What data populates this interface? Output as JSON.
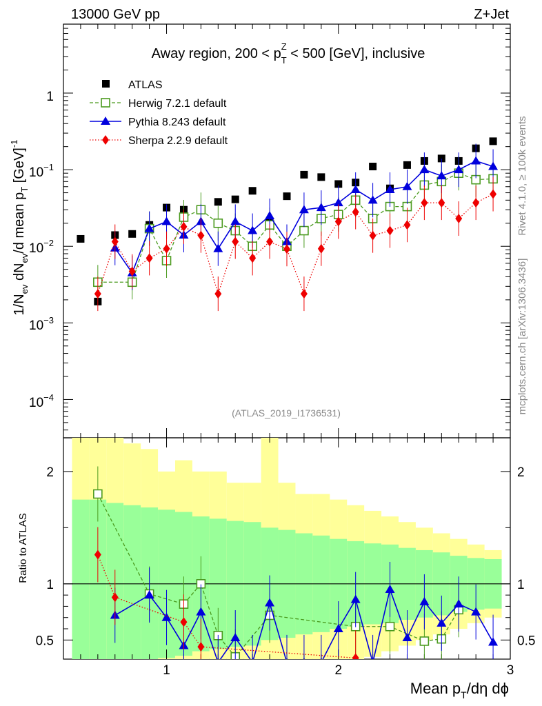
{
  "header": {
    "left": "13000 GeV pp",
    "right": "Z+Jet"
  },
  "title": {
    "pre": "Away region, 200 < p",
    "sup": "Z",
    "sub": "T",
    "post": " < 500 [GeV], inclusive"
  },
  "side_labels": {
    "rivet": "Rivet 4.1.0, ≥ 100k events",
    "mcplots": "mcplots.cern.ch [arXiv:1306.3436]"
  },
  "watermark": "(ATLAS_2019_I1736531)",
  "legend": [
    {
      "label": "ATLAS",
      "color": "#000000"
    },
    {
      "label": "Herwig 7.2.1 default",
      "color": "#4a9a1e"
    },
    {
      "label": "Pythia 8.243 default",
      "color": "#0000dd"
    },
    {
      "label": "Sherpa 2.2.9 default",
      "color": "#ee0000"
    }
  ],
  "axes": {
    "xlabel_main": "Mean p",
    "xlabel_sub": "T",
    "xlabel_rest": "/dη dϕ",
    "ylabel_top": "1/N_ev dN_ev/d mean p_T [GeV]^-1",
    "ylabel_ratio": "Ratio to ATLAS",
    "x_ticks": [
      "1",
      "2",
      "3"
    ],
    "y_ticks_top": [
      "1",
      "10^-1",
      "10^-2",
      "10^-3",
      "10^-4"
    ],
    "y_ticks_ratio": [
      "0.5",
      "1",
      "2"
    ]
  },
  "chart_data": {
    "type": "scatter",
    "xlim": [
      0.4,
      3.0
    ],
    "ylim_top_log": [
      -4.5,
      0.9
    ],
    "ylim_ratio": [
      0.33,
      2.3
    ],
    "series": [
      {
        "name": "ATLAS",
        "x": [
          0.5,
          0.6,
          0.7,
          0.8,
          0.9,
          1.0,
          1.1,
          1.2,
          1.3,
          1.4,
          1.5,
          1.6,
          1.7,
          1.8,
          1.9,
          2.0,
          2.1,
          2.2,
          2.3,
          2.4,
          2.5,
          2.6,
          2.7,
          2.8,
          2.9
        ],
        "values": [
          0.0125,
          0.0019,
          0.014,
          0.0145,
          0.019,
          0.032,
          0.03,
          0.03,
          0.038,
          0.041,
          0.053,
          0.021,
          0.045,
          0.086,
          0.08,
          0.065,
          0.068,
          0.11,
          0.057,
          0.115,
          0.13,
          0.14,
          0.13,
          0.19,
          0.235
        ]
      },
      {
        "name": "Herwig 7.2.1 default",
        "x": [
          0.6,
          0.8,
          0.9,
          1.0,
          1.1,
          1.2,
          1.3,
          1.4,
          1.5,
          1.6,
          1.7,
          1.8,
          1.9,
          2.0,
          2.1,
          2.2,
          2.3,
          2.4,
          2.5,
          2.6,
          2.7,
          2.8,
          2.9
        ],
        "values": [
          0.0034,
          0.0034,
          0.017,
          0.0065,
          0.024,
          0.03,
          0.02,
          0.016,
          0.01,
          0.019,
          0.01,
          0.016,
          0.023,
          0.026,
          0.04,
          0.023,
          0.033,
          0.033,
          0.063,
          0.07,
          0.09,
          0.074,
          0.076
        ]
      },
      {
        "name": "Pythia 8.243 default",
        "x": [
          0.7,
          0.8,
          0.9,
          1.0,
          1.1,
          1.2,
          1.3,
          1.4,
          1.5,
          1.6,
          1.7,
          1.8,
          1.9,
          2.0,
          2.1,
          2.2,
          2.3,
          2.4,
          2.5,
          2.6,
          2.7,
          2.8,
          2.9
        ],
        "values": [
          0.0095,
          0.0045,
          0.017,
          0.021,
          0.014,
          0.021,
          0.0093,
          0.021,
          0.016,
          0.025,
          0.0115,
          0.03,
          0.032,
          0.037,
          0.055,
          0.04,
          0.055,
          0.06,
          0.1,
          0.083,
          0.1,
          0.13,
          0.11
        ]
      },
      {
        "name": "Sherpa 2.2.9 default",
        "x": [
          0.6,
          0.7,
          0.8,
          0.9,
          1.0,
          1.1,
          1.2,
          1.3,
          1.4,
          1.5,
          1.6,
          1.7,
          1.8,
          1.9,
          2.0,
          2.1,
          2.2,
          2.3,
          2.4,
          2.5,
          2.6,
          2.7,
          2.8,
          2.9
        ],
        "values": [
          0.0024,
          0.0115,
          0.0047,
          0.007,
          0.0093,
          0.018,
          0.0138,
          0.0024,
          0.0115,
          0.007,
          0.0115,
          0.0092,
          0.0024,
          0.0093,
          0.021,
          0.028,
          0.0138,
          0.016,
          0.019,
          0.037,
          0.037,
          0.023,
          0.037,
          0.048
        ]
      }
    ],
    "ratio": {
      "Herwig 7.2.1 default": {
        "x": [
          0.6,
          0.9,
          1.1,
          1.2,
          1.3,
          1.4,
          1.6,
          2.1,
          2.3,
          2.5,
          2.6,
          2.7
        ],
        "values": [
          1.8,
          0.91,
          0.82,
          1.0,
          0.54,
          0.35,
          0.72,
          0.62,
          0.62,
          0.49,
          0.51,
          0.77
        ]
      },
      "Pythia 8.243 default": {
        "x": [
          0.7,
          0.9,
          1.0,
          1.1,
          1.2,
          1.3,
          1.4,
          1.5,
          1.6,
          1.7,
          1.8,
          1.9,
          2.0,
          2.1,
          2.2,
          2.3,
          2.4,
          2.5,
          2.6,
          2.7,
          2.8,
          2.9
        ],
        "values": [
          0.72,
          0.9,
          0.7,
          0.45,
          0.75,
          0.3,
          0.52,
          0.3,
          0.83,
          0.3,
          0.3,
          0.3,
          0.6,
          0.86,
          0.3,
          0.95,
          0.52,
          0.84,
          0.65,
          0.82,
          0.75,
          0.48
        ]
      },
      "Sherpa 2.2.9 default": {
        "x": [
          0.6,
          0.7,
          1.1,
          1.2,
          2.1
        ],
        "values": [
          1.26,
          0.88,
          0.66,
          0.44,
          0.34
        ]
      },
      "band_green_half_width": [
        0.75,
        0.75,
        0.72,
        0.7,
        0.68,
        0.66,
        0.64,
        0.6,
        0.58,
        0.56,
        0.55,
        0.5,
        0.48,
        0.45,
        0.43,
        0.4,
        0.38,
        0.36,
        0.35,
        0.32,
        0.3,
        0.28,
        0.25,
        0.23,
        0.22
      ],
      "band_yellow_top": [
        2.3,
        2.3,
        2.3,
        2.25,
        2.2,
        2.0,
        2.1,
        2.0,
        2.0,
        1.9,
        1.9,
        2.3,
        1.9,
        1.8,
        1.8,
        1.75,
        1.7,
        1.65,
        1.6,
        1.55,
        1.5,
        1.45,
        1.4,
        1.35,
        1.3
      ]
    }
  }
}
